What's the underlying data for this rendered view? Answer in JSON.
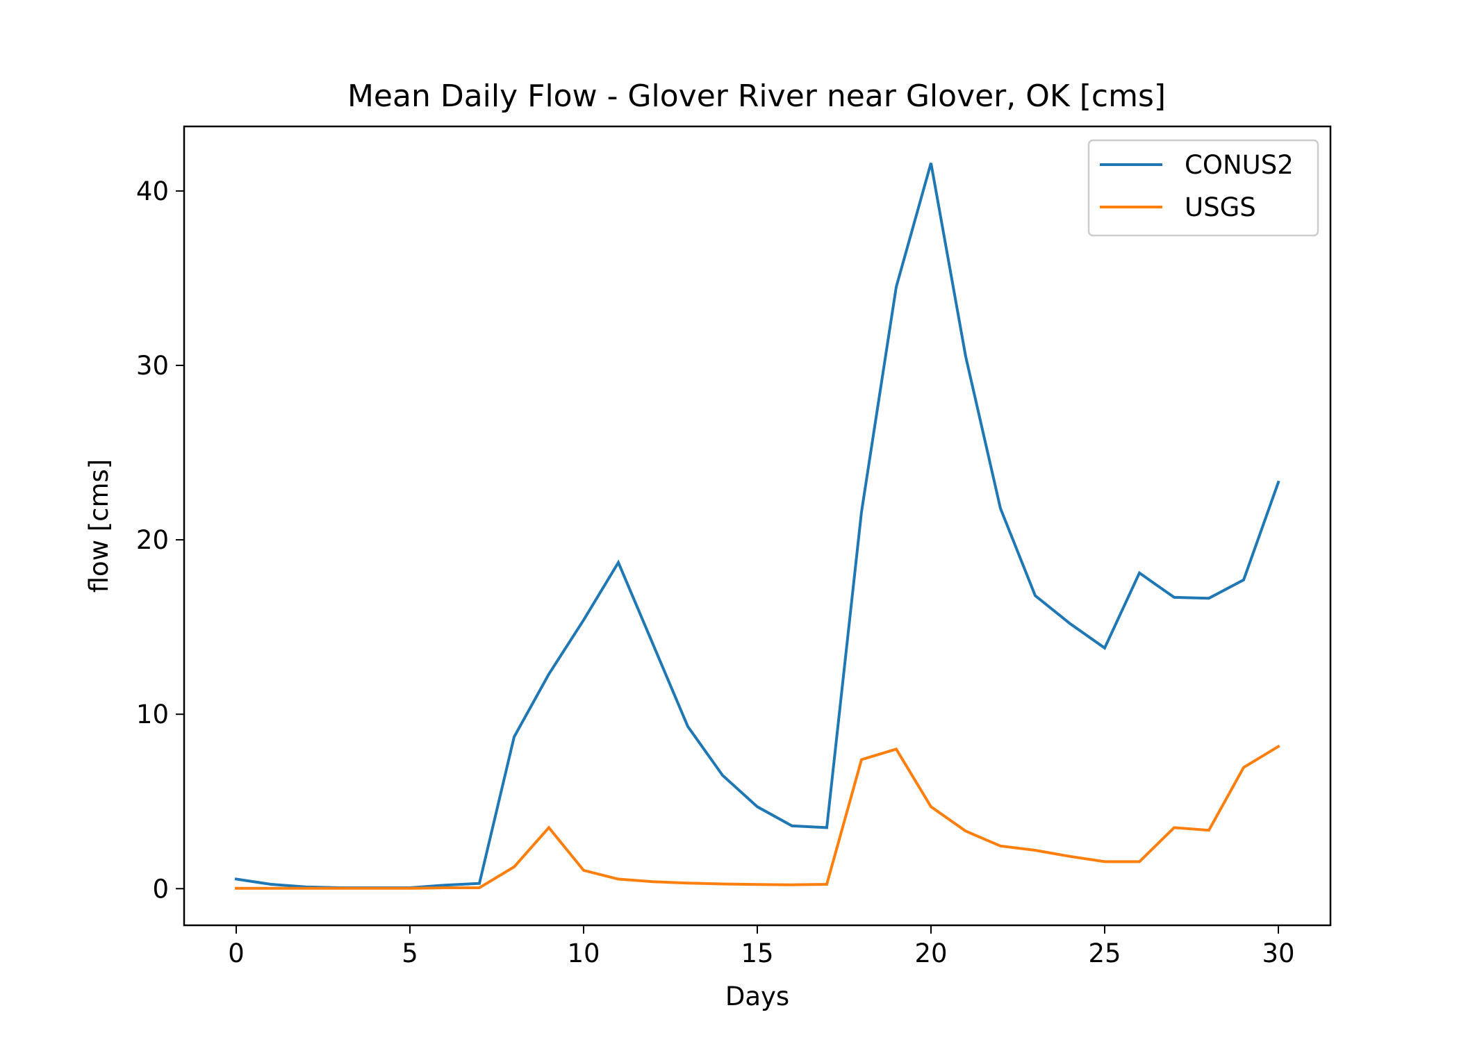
{
  "chart_data": {
    "type": "line",
    "title": "Mean Daily Flow - Glover River near Glover, OK [cms]",
    "xlabel": "Days",
    "ylabel": "flow [cms]",
    "xlim": [
      -1.5,
      31.5
    ],
    "ylim": [
      -2.1,
      43.7
    ],
    "x_ticks": [
      0,
      5,
      10,
      15,
      20,
      25,
      30
    ],
    "y_ticks": [
      0,
      10,
      20,
      30,
      40
    ],
    "grid": false,
    "legend_position": "upper right",
    "x": [
      0,
      1,
      2,
      3,
      4,
      5,
      6,
      7,
      8,
      9,
      10,
      11,
      12,
      13,
      14,
      15,
      16,
      17,
      18,
      19,
      20,
      21,
      22,
      23,
      24,
      25,
      26,
      27,
      28,
      29,
      30
    ],
    "series": [
      {
        "name": "CONUS2",
        "color": "#1f77b4",
        "values": [
          0.55,
          0.25,
          0.1,
          0.05,
          0.05,
          0.05,
          0.2,
          0.3,
          8.7,
          12.3,
          15.4,
          18.7,
          14.0,
          9.3,
          6.5,
          4.7,
          3.6,
          3.5,
          21.6,
          34.5,
          41.6,
          30.5,
          21.8,
          16.8,
          15.2,
          13.8,
          18.1,
          16.7,
          16.65,
          17.7,
          23.3
        ]
      },
      {
        "name": "USGS",
        "color": "#ff7f0e",
        "values": [
          0.02,
          0.02,
          0.02,
          0.02,
          0.02,
          0.02,
          0.05,
          0.05,
          1.25,
          3.5,
          1.05,
          0.55,
          0.4,
          0.32,
          0.27,
          0.24,
          0.22,
          0.25,
          7.4,
          8.0,
          4.7,
          3.3,
          2.45,
          2.2,
          1.85,
          1.55,
          1.55,
          3.5,
          3.35,
          6.95,
          8.15
        ]
      }
    ]
  }
}
